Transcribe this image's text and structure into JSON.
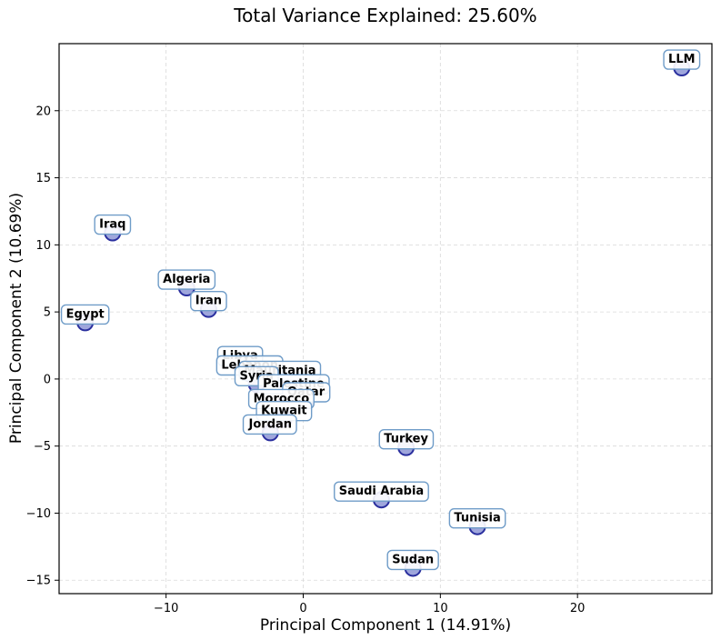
{
  "chart_data": {
    "type": "scatter",
    "title": "Total Variance Explained: 25.60%",
    "xlabel": "Principal Component 1 (14.91%)",
    "ylabel": "Principal Component 2 (10.69%)",
    "xlim": [
      -17.8,
      29.8
    ],
    "ylim": [
      -16.0,
      25.0
    ],
    "xticks": [
      -10,
      0,
      10,
      20
    ],
    "yticks": [
      -15,
      -10,
      -5,
      0,
      5,
      10,
      15,
      20
    ],
    "xtick_labels": [
      "−10",
      "0",
      "10",
      "20"
    ],
    "ytick_labels": [
      "−15",
      "−10",
      "−5",
      "0",
      "5",
      "10",
      "15",
      "20"
    ],
    "grid": true,
    "points": [
      {
        "label": "LLM",
        "x": 27.6,
        "y": 23.2
      },
      {
        "label": "Iraq",
        "x": -13.9,
        "y": 10.9
      },
      {
        "label": "Algeria",
        "x": -8.5,
        "y": 6.8
      },
      {
        "label": "Iran",
        "x": -6.9,
        "y": 5.2
      },
      {
        "label": "Egypt",
        "x": -15.9,
        "y": 4.2
      },
      {
        "label": "Libya",
        "x": -4.6,
        "y": 1.1
      },
      {
        "label": "Lebanon",
        "x": -3.9,
        "y": 0.4
      },
      {
        "label": "Mauritania",
        "x": -1.7,
        "y": 0.0
      },
      {
        "label": "Syria",
        "x": -3.4,
        "y": -0.4
      },
      {
        "label": "Palestine",
        "x": -0.7,
        "y": -1.0
      },
      {
        "label": "Qatar",
        "x": 0.2,
        "y": -1.6
      },
      {
        "label": "Morocco",
        "x": -1.6,
        "y": -2.1
      },
      {
        "label": "Kuwait",
        "x": -1.4,
        "y": -3.0
      },
      {
        "label": "Jordan",
        "x": -2.4,
        "y": -4.0
      },
      {
        "label": "Turkey",
        "x": 7.5,
        "y": -5.1
      },
      {
        "label": "Saudi Arabia",
        "x": 5.7,
        "y": -9.0
      },
      {
        "label": "Tunisia",
        "x": 12.7,
        "y": -11.0
      },
      {
        "label": "Sudan",
        "x": 8.0,
        "y": -14.1
      }
    ]
  }
}
